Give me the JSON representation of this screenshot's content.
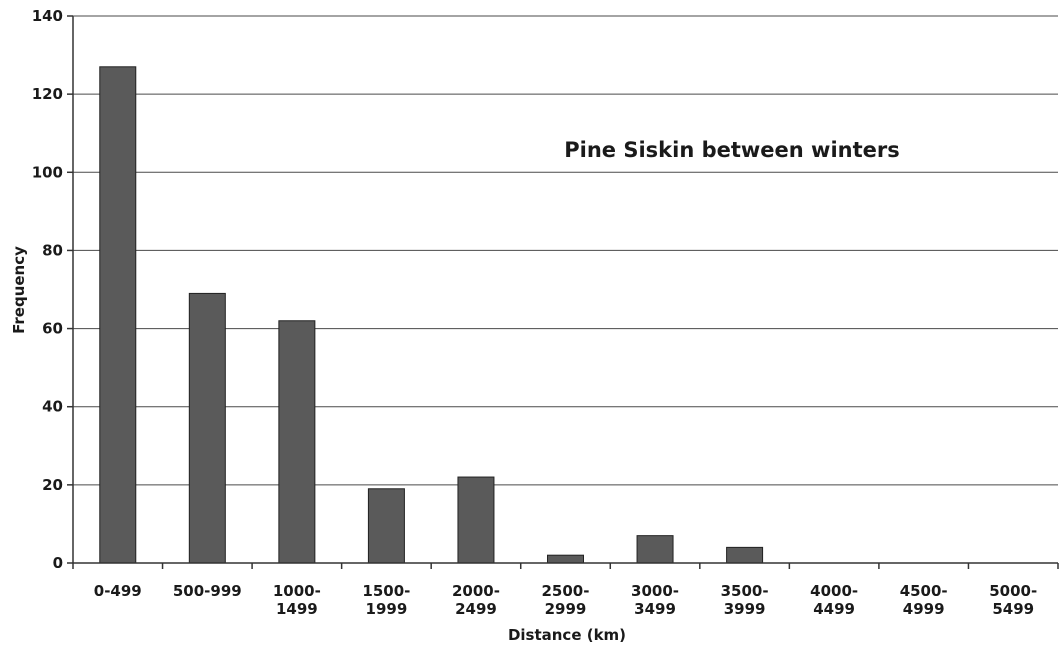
{
  "chart_data": {
    "type": "bar",
    "title": "Pine Siskin between winters",
    "xlabel": "Distance (km)",
    "ylabel": "Frequency",
    "categories": [
      [
        "0-499"
      ],
      [
        "500-999"
      ],
      [
        "1000-",
        "1499"
      ],
      [
        "1500-",
        "1999"
      ],
      [
        "2000-",
        "2499"
      ],
      [
        "2500-",
        "2999"
      ],
      [
        "3000-",
        "3499"
      ],
      [
        "3500-",
        "3999"
      ],
      [
        "4000-",
        "4499"
      ],
      [
        "4500-",
        "4999"
      ],
      [
        "5000-",
        "5499"
      ]
    ],
    "values": [
      127,
      69,
      62,
      19,
      22,
      2,
      7,
      4,
      0,
      0,
      0
    ],
    "ylim": [
      0,
      140
    ],
    "yticks": [
      0,
      20,
      40,
      60,
      80,
      100,
      120,
      140
    ],
    "grid": true,
    "bar_color": "#5a5a5a"
  }
}
